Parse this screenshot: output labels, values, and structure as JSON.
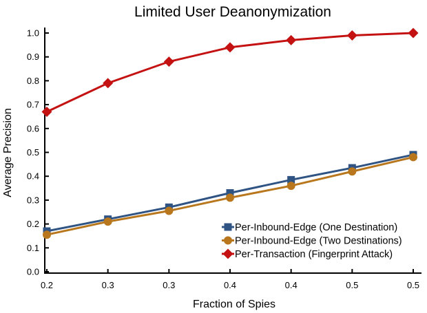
{
  "figure": {
    "background_color": "#ffffff",
    "text_color": "#000000",
    "axis_color": "#000000"
  },
  "chart_data": {
    "type": "line",
    "title": "Limited User Deanonymization",
    "xlabel": "Fraction of Spies",
    "ylabel": "Average Precision",
    "x": [
      0.2,
      0.25,
      0.3,
      0.35,
      0.4,
      0.45,
      0.5
    ],
    "x_tick_labels": [
      "0.2",
      "0.3",
      "0.3",
      "0.4",
      "0.4",
      "0.5",
      "0.5"
    ],
    "y_ticks": [
      0.0,
      0.1,
      0.2,
      0.3,
      0.4,
      0.5,
      0.6,
      0.7,
      0.8,
      0.9,
      1.0
    ],
    "y_tick_labels": [
      "0.0",
      "0.1",
      "0.2",
      "0.3",
      "0.4",
      "0.5",
      "0.6",
      "0.7",
      "0.8",
      "0.9",
      "1.0"
    ],
    "xlim": [
      0.2,
      0.5
    ],
    "ylim": [
      0.0,
      1.0
    ],
    "grid": false,
    "legend_position": "inside-bottom-right",
    "series": [
      {
        "name": "Per-Inbound-Edge (One Destination)",
        "marker": "square",
        "icon": "square-marker-icon",
        "color": "#2f5382",
        "values": [
          0.17,
          0.22,
          0.27,
          0.33,
          0.385,
          0.435,
          0.49
        ]
      },
      {
        "name": "Per-Inbound-Edge (Two Destinations)",
        "marker": "circle",
        "icon": "circle-marker-icon",
        "color": "#b9771d",
        "values": [
          0.155,
          0.21,
          0.255,
          0.31,
          0.36,
          0.42,
          0.48
        ]
      },
      {
        "name": "Per-Transaction (Fingerprint Attack)",
        "marker": "diamond",
        "icon": "diamond-marker-icon",
        "color": "#c41212",
        "values": [
          0.67,
          0.79,
          0.88,
          0.94,
          0.97,
          0.99,
          1.0
        ]
      }
    ]
  }
}
